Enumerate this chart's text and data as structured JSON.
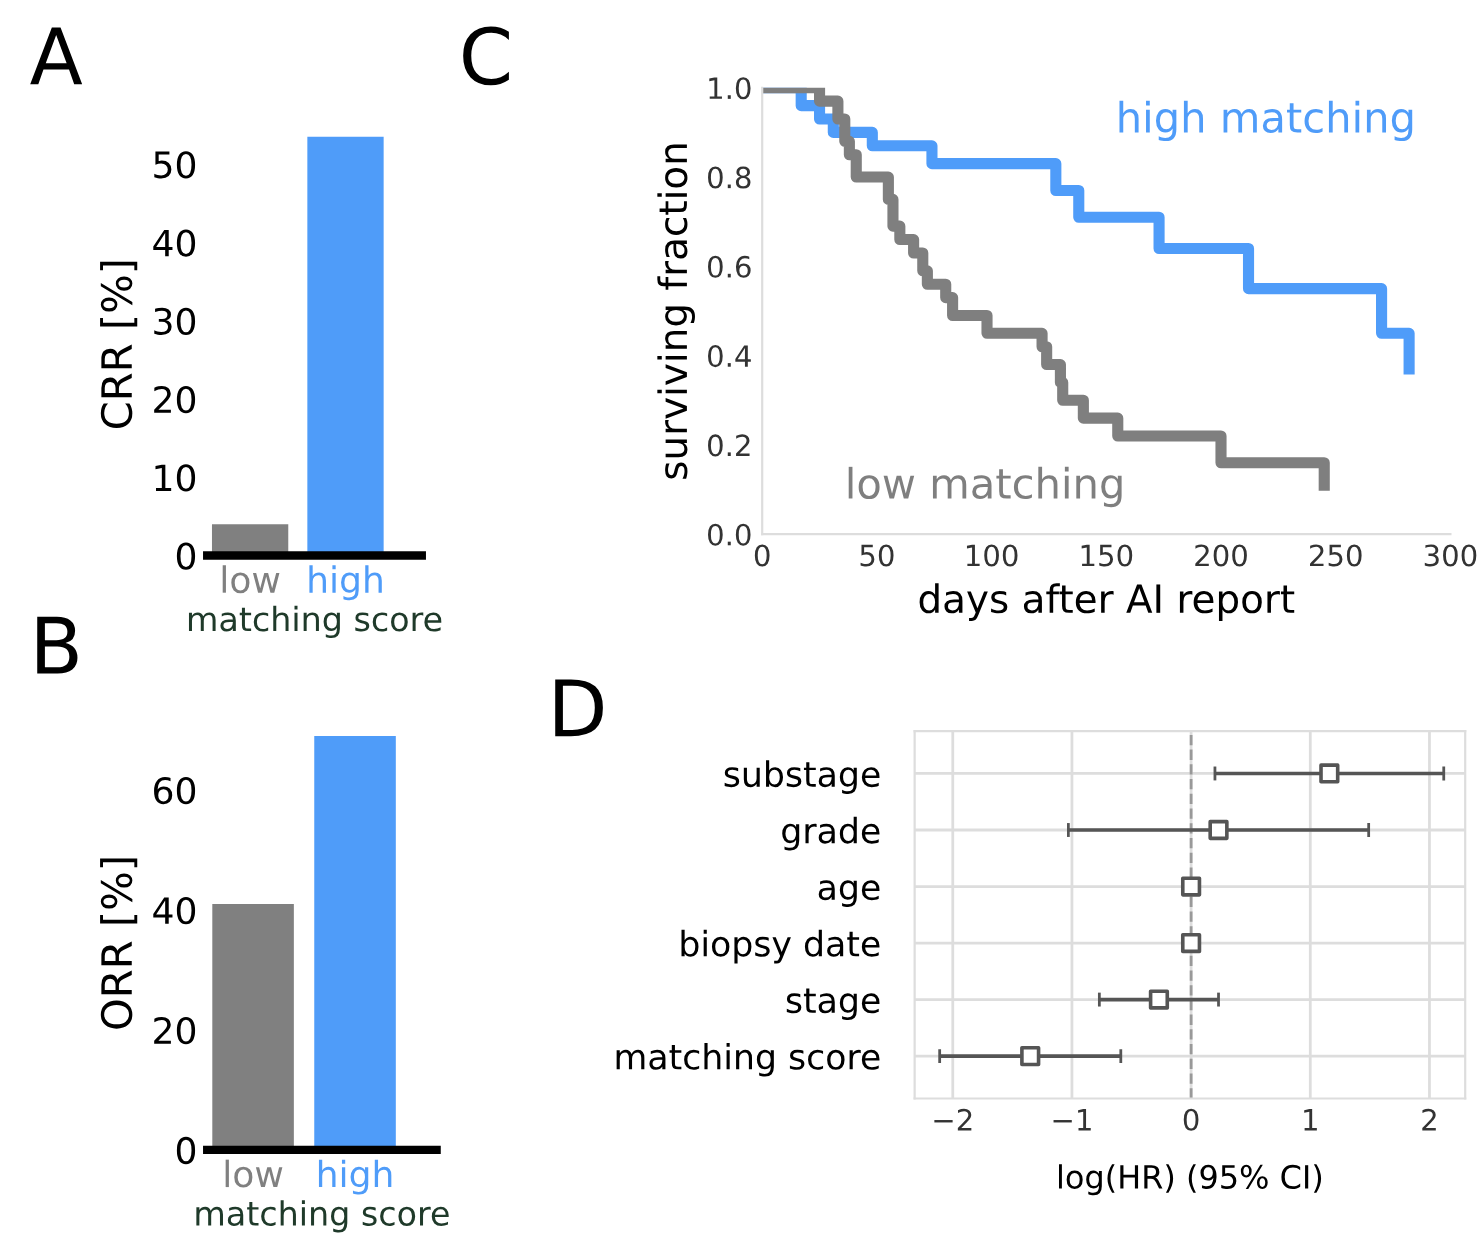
{
  "chart_data": [
    {
      "type": "bar",
      "annotations": [
        "A"
      ],
      "categories": [
        "low",
        "high"
      ],
      "values": [
        4,
        53.5
      ],
      "colors": [
        "#808080",
        "#4f9cf9"
      ],
      "ylabel": "CRR [%]",
      "ylim": [
        0,
        54
      ],
      "yticks": [
        0,
        10,
        20,
        30,
        40,
        50
      ],
      "xlabel": "matching score",
      "grid": false
    },
    {
      "type": "bar",
      "annotations": [
        "B"
      ],
      "categories": [
        "low",
        "high"
      ],
      "values": [
        41,
        69
      ],
      "colors": [
        "#808080",
        "#4f9cf9"
      ],
      "ylabel": "ORR [%]",
      "ylim": [
        0,
        69
      ],
      "yticks": [
        0,
        20,
        40,
        60
      ],
      "xlabel": "matching score",
      "grid": false
    },
    {
      "type": "step",
      "annotations": [
        "C"
      ],
      "xlabel": "days after AI report",
      "ylabel": "surviving fraction",
      "xlim": [
        0,
        300
      ],
      "xticks": [
        0,
        50,
        100,
        150,
        200,
        250,
        300
      ],
      "ylim": [
        0,
        1.0
      ],
      "yticks": [
        {
          "value": 0,
          "label": "0.0"
        },
        {
          "value": 0.2,
          "label": "0.2"
        },
        {
          "value": 0.4,
          "label": "0.4"
        },
        {
          "value": 0.6,
          "label": "0.6"
        },
        {
          "value": 0.8,
          "label": "0.8"
        },
        {
          "value": 1.0,
          "label": "1.0"
        }
      ],
      "grid": false,
      "legend": false,
      "series": [
        {
          "name": "high matching",
          "color": "#4f9cf9",
          "x": [
            0,
            17,
            25,
            31,
            48,
            74,
            128,
            138,
            173,
            212,
            270,
            282,
            282
          ],
          "values": [
            1.0,
            0.96,
            0.93,
            0.9,
            0.87,
            0.83,
            0.77,
            0.71,
            0.64,
            0.55,
            0.45,
            0.37,
            0.37
          ]
        },
        {
          "name": "low matching",
          "color": "#7f7f7f",
          "x": [
            0,
            25,
            33,
            36,
            38,
            41,
            55,
            57,
            60,
            66,
            70,
            72,
            80,
            83,
            98,
            122,
            124,
            130,
            131,
            140,
            155,
            200,
            245,
            245
          ],
          "values": [
            1.0,
            0.97,
            0.93,
            0.88,
            0.85,
            0.8,
            0.75,
            0.69,
            0.66,
            0.63,
            0.59,
            0.56,
            0.53,
            0.49,
            0.45,
            0.42,
            0.38,
            0.34,
            0.3,
            0.26,
            0.22,
            0.16,
            0.11,
            0.11
          ]
        }
      ]
    },
    {
      "type": "scatter",
      "annotations": [
        "D"
      ],
      "orientation": "horizontal",
      "categories": [
        "substage",
        "grade",
        "age",
        "biopsy date",
        "stage",
        "matching score"
      ],
      "values": [
        1.16,
        0.23,
        0.0,
        0.0,
        -0.27,
        -1.35
      ],
      "errors": [
        [
          0.2,
          2.12
        ],
        [
          -1.03,
          1.49
        ],
        null,
        null,
        [
          -0.77,
          0.23
        ],
        [
          -2.11,
          -0.59
        ]
      ],
      "color": "#555555",
      "marker": "square",
      "xlabel": "log(HR) (95% CI)",
      "xlim": [
        -2.32,
        2.3
      ],
      "xticks": [
        {
          "value": -2,
          "label": "−2"
        },
        {
          "value": -1,
          "label": "−1"
        },
        0,
        1,
        2
      ],
      "grid": true,
      "ref_lines": [
        {
          "axis": "x",
          "value": 0,
          "line_style": "dashed",
          "color": "#999999"
        }
      ]
    }
  ]
}
